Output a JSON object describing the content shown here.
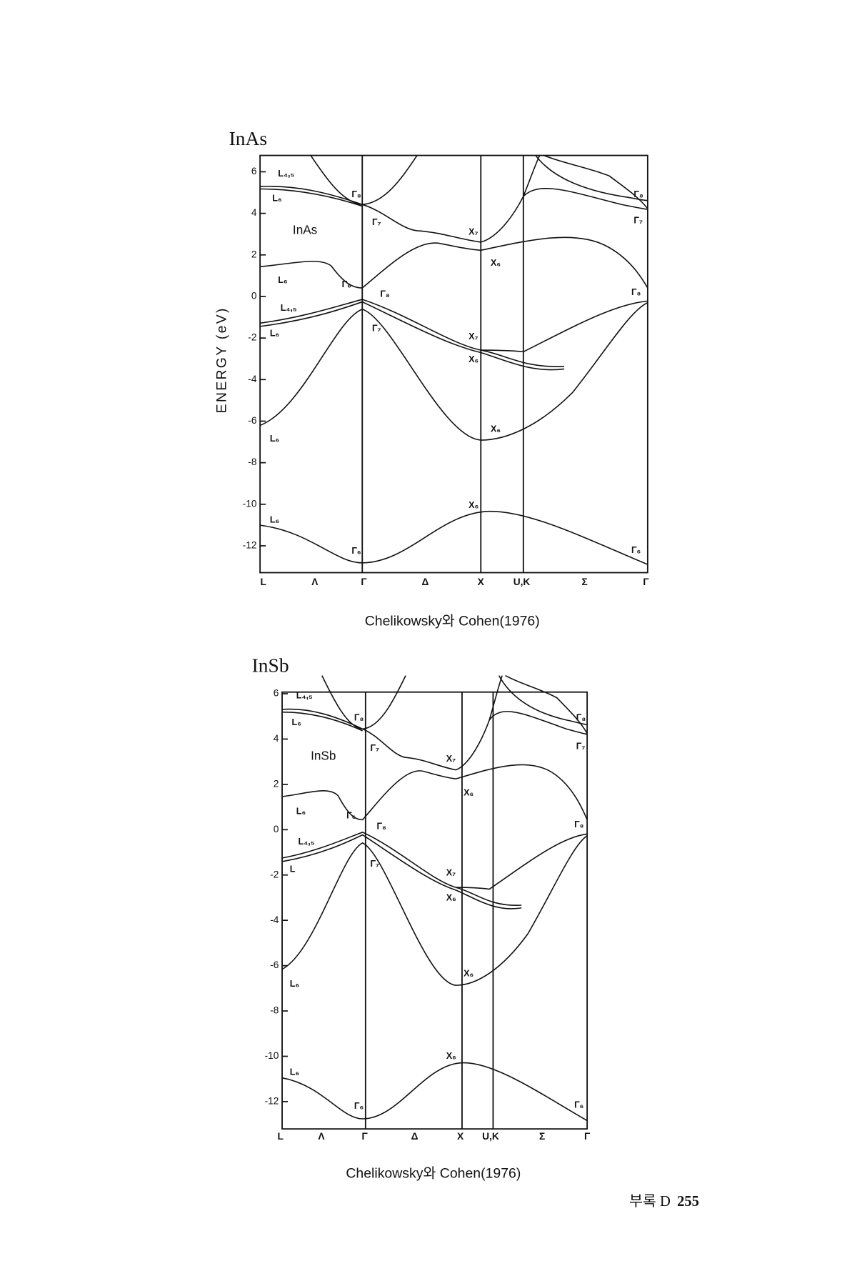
{
  "figures": [
    {
      "title": "InAs",
      "inset_label": "InAs",
      "y_axis_label": "ENERGY (eV)",
      "y_ticks": [
        6,
        4,
        2,
        0,
        -2,
        -4,
        -6,
        -8,
        -10,
        -12
      ],
      "x_labels": [
        "L",
        "Λ",
        "Γ",
        "Δ",
        "X",
        "U,K",
        "Σ",
        "Γ"
      ],
      "point_labels": [
        "L₄,₅",
        "L₆",
        "Γ₈",
        "Γ₇",
        "X₇",
        "X₆",
        "L₆",
        "Γ₆",
        "Γ₈",
        "L₄,₅",
        "L₆",
        "Γ₇",
        "X₇",
        "X₆",
        "L₆",
        "X₆",
        "X₆",
        "L₆",
        "Γ₆",
        "Γ₈",
        "Γ₇",
        "Γ₈",
        "Γ₆"
      ],
      "caption": "Chelikowsky와 Cohen(1976)"
    },
    {
      "title": "InSb",
      "inset_label": "InSb",
      "y_ticks": [
        6,
        4,
        2,
        0,
        -2,
        -4,
        -6,
        -8,
        -10,
        -12
      ],
      "x_labels": [
        "L",
        "Λ",
        "Γ",
        "Δ",
        "X",
        "U,K",
        "Σ",
        "Γ"
      ],
      "point_labels": [
        "L₄,₅",
        "L₆",
        "Γ₈",
        "Γ₇",
        "X₇",
        "X₆",
        "L₆",
        "Γ₆",
        "Γ₈",
        "L₄,₅",
        "L",
        "Γ₇",
        "X₇",
        "X₆",
        "L₆",
        "X₆",
        "X₆",
        "L₆",
        "Γ₆",
        "Γ₈",
        "Γ₇",
        "Γ₈",
        "Γ₆"
      ],
      "caption": "Chelikowsky와 Cohen(1976)"
    }
  ],
  "footer": {
    "section": "부록 D",
    "page_number": "255"
  }
}
